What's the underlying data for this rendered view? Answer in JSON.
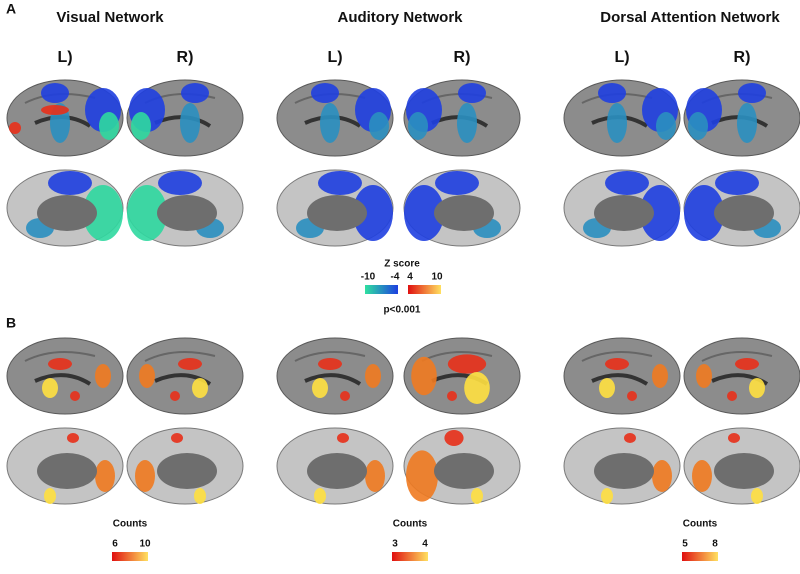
{
  "panel_a": {
    "label": "A",
    "networks": [
      {
        "title": "Visual Network",
        "left": "L)",
        "right": "R)"
      },
      {
        "title": "Auditory Network",
        "left": "L)",
        "right": "R)"
      },
      {
        "title": "Dorsal Attention Network",
        "left": "L)",
        "right": "R)"
      }
    ],
    "legend": {
      "title": "Z score",
      "ticks": [
        "-10",
        "-4",
        "4",
        "10"
      ],
      "threshold": "p<0.001"
    }
  },
  "panel_b": {
    "label": "B",
    "legends": [
      {
        "title": "Counts",
        "ticks": [
          "6",
          "10"
        ]
      },
      {
        "title": "Counts",
        "ticks": [
          "3",
          "4"
        ]
      },
      {
        "title": "Counts",
        "ticks": [
          "5",
          "8"
        ]
      }
    ]
  }
}
